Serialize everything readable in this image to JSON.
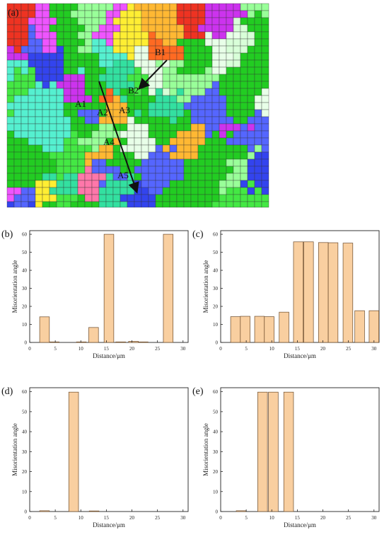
{
  "figure": {
    "map": {
      "panel_label": "(a)",
      "labels": [
        "B1",
        "B2",
        "A1",
        "A2",
        "A3",
        "A4",
        "A5"
      ],
      "palette": [
        "#22cc22",
        "#44e844",
        "#33e0a0",
        "#55f0d0",
        "#ee3322",
        "#ff6a22",
        "#3344ee",
        "#5566ff",
        "#cc33ee",
        "#ee55ff",
        "#ffee33",
        "#ffb833",
        "#ff77aa",
        "#99ff99",
        "#e8ffe8",
        "#d8ffd8",
        "#22cc22",
        "#22cc22",
        "#33e0a0"
      ]
    }
  },
  "chart_data": [
    {
      "panel_label": "(b)",
      "type": "bar",
      "xlabel": "Distance/μm",
      "ylabel": "Misorientation angle",
      "xlim": [
        0,
        31
      ],
      "ylim": [
        0,
        62
      ],
      "xticks": [
        "0",
        "5",
        "10",
        "15",
        "20",
        "25",
        "30"
      ],
      "yticks": [
        "0",
        "10",
        "20",
        "30",
        "40",
        "50",
        "60"
      ],
      "x": [
        2.9,
        4.8,
        10.1,
        12.5,
        15.5,
        17.8,
        20.3,
        22.2,
        27.1
      ],
      "values": [
        14.2,
        0.3,
        0.3,
        8.3,
        60.0,
        0.3,
        0.6,
        0.3,
        60.0
      ]
    },
    {
      "panel_label": "(c)",
      "type": "bar",
      "xlabel": "Distance/μm",
      "ylabel": "Misorientation angle",
      "xlim": [
        0,
        31
      ],
      "ylim": [
        0,
        62
      ],
      "xticks": [
        "0",
        "5",
        "10",
        "15",
        "20",
        "25",
        "30"
      ],
      "yticks": [
        "0",
        "10",
        "20",
        "30",
        "40",
        "50",
        "60"
      ],
      "x": [
        2.9,
        4.8,
        7.6,
        9.5,
        12.4,
        15.2,
        17.2,
        20.1,
        22.0,
        24.9,
        27.2,
        30.0
      ],
      "values": [
        14.3,
        14.5,
        14.5,
        14.3,
        16.8,
        55.8,
        55.8,
        55.4,
        55.3,
        55.1,
        17.6,
        17.6
      ]
    },
    {
      "panel_label": "(d)",
      "type": "bar",
      "xlabel": "Distance/μm",
      "ylabel": "Misorientation angle",
      "xlim": [
        0,
        31
      ],
      "ylim": [
        0,
        62
      ],
      "xticks": [
        "0",
        "5",
        "10",
        "15",
        "20",
        "25",
        "30"
      ],
      "yticks": [
        "0",
        "10",
        "20",
        "30",
        "40",
        "50",
        "60"
      ],
      "x": [
        2.9,
        8.6,
        12.6
      ],
      "values": [
        0.4,
        59.8,
        0.3
      ]
    },
    {
      "panel_label": "(e)",
      "type": "bar",
      "xlabel": "Distance/μm",
      "ylabel": "Misorientation angle",
      "xlim": [
        0,
        31
      ],
      "ylim": [
        0,
        62
      ],
      "xticks": [
        "0",
        "5",
        "10",
        "15",
        "20",
        "25",
        "30"
      ],
      "yticks": [
        "0",
        "10",
        "20",
        "30",
        "40",
        "50",
        "60"
      ],
      "x": [
        4.0,
        8.2,
        10.3,
        13.3
      ],
      "values": [
        0.4,
        59.8,
        59.8,
        59.8
      ]
    }
  ]
}
